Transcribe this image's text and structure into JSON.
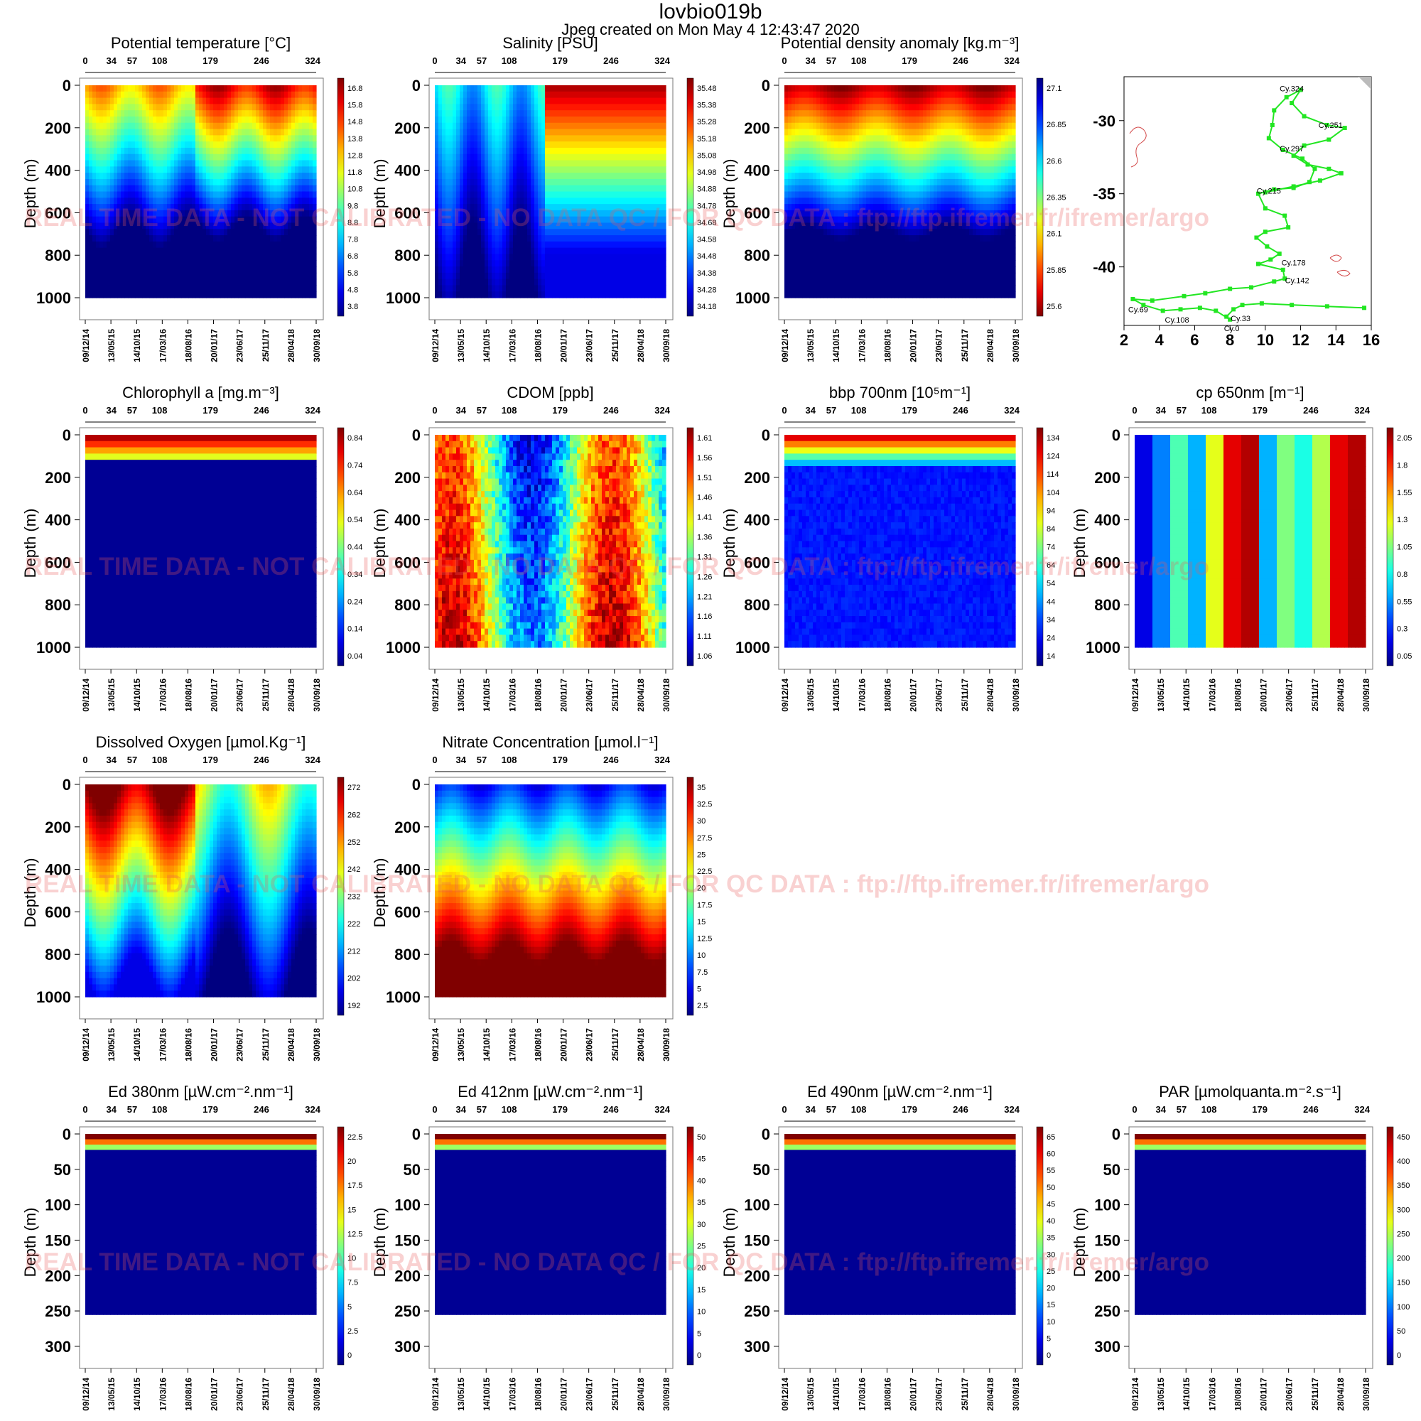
{
  "header": {
    "title": "lovbio019b",
    "subtitle": "Jpeg created on  Mon May  4 12:43:47 2020"
  },
  "watermark": "REAL TIME DATA - NOT CALIBRATED - NO DATA QC  /  FOR QC DATA : ftp://ftp.ifremer.fr/ifremer/argo",
  "chart_data": [
    {
      "type": "heatmap",
      "title": "Potential temperature [°C]",
      "ylabel": "Depth (m)",
      "ylim": [
        1000,
        0
      ],
      "yticks": [
        0,
        200,
        400,
        600,
        800,
        1000
      ],
      "top_ticks": [
        "0",
        "34",
        "57",
        "108",
        "179",
        "246",
        "324"
      ],
      "date_ticks": [
        "09/12/14",
        "13/05/15",
        "14/10/15",
        "17/03/16",
        "18/08/16",
        "20/01/17",
        "23/06/17",
        "25/11/17",
        "28/04/18",
        "30/09/18"
      ],
      "colorbar": [
        "16.8",
        "15.8",
        "14.8",
        "13.8",
        "12.8",
        "11.8",
        "10.8",
        "9.8",
        "8.8",
        "7.8",
        "6.8",
        "5.8",
        "4.8",
        "3.8"
      ],
      "colormap": "jet"
    },
    {
      "type": "heatmap",
      "title": "Salinity [PSU]",
      "ylabel": "Depth (m)",
      "ylim": [
        1000,
        0
      ],
      "yticks": [
        0,
        200,
        400,
        600,
        800,
        1000
      ],
      "top_ticks": [
        "0",
        "34",
        "57",
        "108",
        "179",
        "246",
        "324"
      ],
      "date_ticks": [
        "09/12/14",
        "13/05/15",
        "14/10/15",
        "17/03/16",
        "18/08/16",
        "20/01/17",
        "23/06/17",
        "25/11/17",
        "28/04/18",
        "30/09/18"
      ],
      "colorbar": [
        "35.48",
        "35.38",
        "35.28",
        "35.18",
        "35.08",
        "34.98",
        "34.88",
        "34.78",
        "34.68",
        "34.58",
        "34.48",
        "34.38",
        "34.28",
        "34.18"
      ],
      "colormap": "jet"
    },
    {
      "type": "heatmap",
      "title": "Potential density anomaly [kg.m⁻³]",
      "ylabel": "Depth (m)",
      "ylim": [
        1000,
        0
      ],
      "yticks": [
        0,
        200,
        400,
        600,
        800,
        1000
      ],
      "top_ticks": [
        "0",
        "34",
        "57",
        "108",
        "179",
        "246",
        "324"
      ],
      "date_ticks": [
        "09/12/14",
        "13/05/15",
        "14/10/15",
        "17/03/16",
        "18/08/16",
        "20/01/17",
        "23/06/17",
        "25/11/17",
        "28/04/18",
        "30/09/18"
      ],
      "colorbar": [
        "27.1",
        "26.85",
        "26.6",
        "26.35",
        "26.1",
        "25.85",
        "25.6"
      ],
      "colormap": "jet_reversed"
    },
    {
      "type": "scatter",
      "title": "",
      "xlim": [
        2,
        16
      ],
      "ylim": [
        -44,
        -27
      ],
      "xticks": [
        2,
        4,
        6,
        8,
        10,
        12,
        14,
        16
      ],
      "yticks": [
        -30,
        -35,
        -40
      ],
      "cycle_labels": [
        "Cy.324",
        "Cy.251",
        "Cy.297",
        "Cy.215",
        "Cy.178",
        "Cy.142",
        "Cy.69",
        "Cy.108",
        "Cy.33",
        "Cy.0"
      ],
      "track": [
        [
          15.6,
          -42.8
        ],
        [
          13.5,
          -42.7
        ],
        [
          11.5,
          -42.6
        ],
        [
          9.8,
          -42.5
        ],
        [
          8.7,
          -42.6
        ],
        [
          8.2,
          -42.9
        ],
        [
          7.8,
          -43.4
        ],
        [
          8.0,
          -43.6
        ],
        [
          7.2,
          -43.0
        ],
        [
          6.3,
          -42.8
        ],
        [
          5.2,
          -42.9
        ],
        [
          4.2,
          -43.0
        ],
        [
          3.1,
          -42.6
        ],
        [
          2.5,
          -42.2
        ],
        [
          3.6,
          -42.3
        ],
        [
          5.4,
          -42.0
        ],
        [
          6.6,
          -41.8
        ],
        [
          8.0,
          -41.5
        ],
        [
          9.2,
          -41.4
        ],
        [
          10.5,
          -41.0
        ],
        [
          11.1,
          -40.8
        ],
        [
          11.0,
          -40.2
        ],
        [
          9.6,
          -39.8
        ],
        [
          10.3,
          -39.5
        ],
        [
          10.8,
          -39.1
        ],
        [
          10.1,
          -38.6
        ],
        [
          9.5,
          -38.0
        ],
        [
          10.0,
          -37.6
        ],
        [
          11.3,
          -37.3
        ],
        [
          11.1,
          -36.5
        ],
        [
          10.0,
          -36.0
        ],
        [
          9.6,
          -35.0
        ],
        [
          10.5,
          -34.7
        ],
        [
          11.6,
          -34.6
        ],
        [
          12.5,
          -34.2
        ],
        [
          12.8,
          -33.3
        ],
        [
          12.1,
          -32.6
        ],
        [
          11.0,
          -32.0
        ],
        [
          10.2,
          -31.2
        ],
        [
          10.4,
          -30.3
        ],
        [
          10.5,
          -29.3
        ],
        [
          11.2,
          -28.4
        ],
        [
          12.0,
          -27.9
        ],
        [
          11.5,
          -28.8
        ],
        [
          12.2,
          -29.7
        ],
        [
          13.5,
          -30.3
        ],
        [
          14.5,
          -30.5
        ],
        [
          13.6,
          -31.3
        ],
        [
          12.2,
          -31.7
        ],
        [
          11.6,
          -32.4
        ],
        [
          12.4,
          -33.0
        ],
        [
          13.6,
          -33.3
        ],
        [
          14.3,
          -33.6
        ],
        [
          13.1,
          -34.1
        ],
        [
          11.6,
          -34.5
        ],
        [
          10.0,
          -34.9
        ]
      ]
    },
    {
      "type": "heatmap",
      "title": "Chlorophyll a [mg.m⁻³]",
      "ylabel": "Depth (m)",
      "ylim": [
        1000,
        0
      ],
      "yticks": [
        0,
        200,
        400,
        600,
        800,
        1000
      ],
      "top_ticks": [
        "0",
        "34",
        "57",
        "108",
        "179",
        "246",
        "324"
      ],
      "date_ticks": [
        "09/12/14",
        "13/05/15",
        "14/10/15",
        "17/03/16",
        "18/08/16",
        "20/01/17",
        "23/06/17",
        "25/11/17",
        "28/04/18",
        "30/09/18"
      ],
      "colorbar": [
        "0.84",
        "0.74",
        "0.64",
        "0.54",
        "0.44",
        "0.34",
        "0.24",
        "0.14",
        "0.04"
      ],
      "colormap": "jet"
    },
    {
      "type": "heatmap",
      "title": "CDOM  [ppb]",
      "ylabel": "Depth (m)",
      "ylim": [
        1000,
        0
      ],
      "yticks": [
        0,
        200,
        400,
        600,
        800,
        1000
      ],
      "top_ticks": [
        "0",
        "34",
        "57",
        "108",
        "179",
        "246",
        "324"
      ],
      "date_ticks": [
        "09/12/14",
        "13/05/15",
        "14/10/15",
        "17/03/16",
        "18/08/16",
        "20/01/17",
        "23/06/17",
        "25/11/17",
        "28/04/18",
        "30/09/18"
      ],
      "colorbar": [
        "1.61",
        "1.56",
        "1.51",
        "1.46",
        "1.41",
        "1.36",
        "1.31",
        "1.26",
        "1.21",
        "1.16",
        "1.11",
        "1.06"
      ],
      "colormap": "jet"
    },
    {
      "type": "heatmap",
      "title": "bbp 700nm [10⁵m⁻¹]",
      "ylabel": "Depth (m)",
      "ylim": [
        1000,
        0
      ],
      "yticks": [
        0,
        200,
        400,
        600,
        800,
        1000
      ],
      "top_ticks": [
        "0",
        "34",
        "57",
        "108",
        "179",
        "246",
        "324"
      ],
      "date_ticks": [
        "09/12/14",
        "13/05/15",
        "14/10/15",
        "17/03/16",
        "18/08/16",
        "20/01/17",
        "23/06/17",
        "25/11/17",
        "28/04/18",
        "30/09/18"
      ],
      "colorbar": [
        "134",
        "124",
        "114",
        "104",
        "94",
        "84",
        "74",
        "64",
        "54",
        "44",
        "34",
        "24",
        "14"
      ],
      "colormap": "jet"
    },
    {
      "type": "heatmap",
      "title": "cp 650nm [m⁻¹]",
      "ylabel": "Depth (m)",
      "ylim": [
        1000,
        0
      ],
      "yticks": [
        0,
        200,
        400,
        600,
        800,
        1000
      ],
      "top_ticks": [
        "0",
        "34",
        "57",
        "108",
        "179",
        "246",
        "324"
      ],
      "date_ticks": [
        "09/12/14",
        "13/05/15",
        "14/10/15",
        "17/03/16",
        "18/08/16",
        "20/01/17",
        "23/06/17",
        "25/11/17",
        "28/04/18",
        "30/09/18"
      ],
      "colorbar": [
        "2.05",
        "1.8",
        "1.55",
        "1.3",
        "1.05",
        "0.8",
        "0.55",
        "0.3",
        "0.05"
      ],
      "colormap": "jet"
    },
    {
      "type": "heatmap",
      "title": "Dissolved Oxygen [µmol.Kg⁻¹]",
      "ylabel": "Depth (m)",
      "ylim": [
        1000,
        0
      ],
      "yticks": [
        0,
        200,
        400,
        600,
        800,
        1000
      ],
      "top_ticks": [
        "0",
        "34",
        "57",
        "108",
        "179",
        "246",
        "324"
      ],
      "date_ticks": [
        "09/12/14",
        "13/05/15",
        "14/10/15",
        "17/03/16",
        "18/08/16",
        "20/01/17",
        "23/06/17",
        "25/11/17",
        "28/04/18",
        "30/09/18"
      ],
      "colorbar": [
        "272",
        "262",
        "252",
        "242",
        "232",
        "222",
        "212",
        "202",
        "192"
      ],
      "colormap": "jet"
    },
    {
      "type": "heatmap",
      "title": "Nitrate Concentration [µmol.l⁻¹]",
      "ylabel": "Depth (m)",
      "ylim": [
        1000,
        0
      ],
      "yticks": [
        0,
        200,
        400,
        600,
        800,
        1000
      ],
      "top_ticks": [
        "0",
        "34",
        "57",
        "108",
        "179",
        "246",
        "324"
      ],
      "date_ticks": [
        "09/12/14",
        "13/05/15",
        "14/10/15",
        "17/03/16",
        "18/08/16",
        "20/01/17",
        "23/06/17",
        "25/11/17",
        "28/04/18",
        "30/09/18"
      ],
      "colorbar": [
        "35",
        "32.5",
        "30",
        "27.5",
        "25",
        "22.5",
        "20",
        "17.5",
        "15",
        "12.5",
        "10",
        "7.5",
        "5",
        "2.5"
      ],
      "colormap": "jet"
    },
    {
      "type": "heatmap",
      "title": "Ed 380nm [µW.cm⁻².nm⁻¹]",
      "ylabel": "Depth (m)",
      "ylim": [
        300,
        0
      ],
      "yticks": [
        0,
        50,
        100,
        150,
        200,
        250,
        300
      ],
      "top_ticks": [
        "0",
        "34",
        "57",
        "108",
        "179",
        "246",
        "324"
      ],
      "date_ticks": [
        "09/12/14",
        "13/05/15",
        "14/10/15",
        "17/03/16",
        "18/08/16",
        "20/01/17",
        "23/06/17",
        "25/11/17",
        "28/04/18",
        "30/09/18"
      ],
      "colorbar": [
        "22.5",
        "20",
        "17.5",
        "15",
        "12.5",
        "10",
        "7.5",
        "5",
        "2.5",
        "0"
      ],
      "colormap": "jet"
    },
    {
      "type": "heatmap",
      "title": "Ed 412nm [µW.cm⁻².nm⁻¹]",
      "ylabel": "Depth (m)",
      "ylim": [
        300,
        0
      ],
      "yticks": [
        0,
        50,
        100,
        150,
        200,
        250,
        300
      ],
      "top_ticks": [
        "0",
        "34",
        "57",
        "108",
        "179",
        "246",
        "324"
      ],
      "date_ticks": [
        "09/12/14",
        "13/05/15",
        "14/10/15",
        "17/03/16",
        "18/08/16",
        "20/01/17",
        "23/06/17",
        "25/11/17",
        "28/04/18",
        "30/09/18"
      ],
      "colorbar": [
        "50",
        "45",
        "40",
        "35",
        "30",
        "25",
        "20",
        "15",
        "10",
        "5",
        "0"
      ],
      "colormap": "jet"
    },
    {
      "type": "heatmap",
      "title": "Ed 490nm [µW.cm⁻².nm⁻¹]",
      "ylabel": "Depth (m)",
      "ylim": [
        300,
        0
      ],
      "yticks": [
        0,
        50,
        100,
        150,
        200,
        250,
        300
      ],
      "top_ticks": [
        "0",
        "34",
        "57",
        "108",
        "179",
        "246",
        "324"
      ],
      "date_ticks": [
        "09/12/14",
        "13/05/15",
        "14/10/15",
        "17/03/16",
        "18/08/16",
        "20/01/17",
        "23/06/17",
        "25/11/17",
        "28/04/18",
        "30/09/18"
      ],
      "colorbar": [
        "65",
        "60",
        "55",
        "50",
        "45",
        "40",
        "35",
        "30",
        "25",
        "20",
        "15",
        "10",
        "5",
        "0"
      ],
      "colormap": "jet"
    },
    {
      "type": "heatmap",
      "title": "PAR [µmolquanta.m⁻².s⁻¹]",
      "ylabel": "Depth (m)",
      "ylim": [
        300,
        0
      ],
      "yticks": [
        0,
        50,
        100,
        150,
        200,
        250,
        300
      ],
      "top_ticks": [
        "0",
        "34",
        "57",
        "108",
        "179",
        "246",
        "324"
      ],
      "date_ticks": [
        "09/12/14",
        "13/05/15",
        "14/10/15",
        "17/03/16",
        "18/08/16",
        "20/01/17",
        "23/06/17",
        "25/11/17",
        "28/04/18",
        "30/09/18"
      ],
      "colorbar": [
        "450",
        "400",
        "350",
        "300",
        "250",
        "200",
        "150",
        "100",
        "50",
        "0"
      ],
      "colormap": "jet"
    }
  ]
}
